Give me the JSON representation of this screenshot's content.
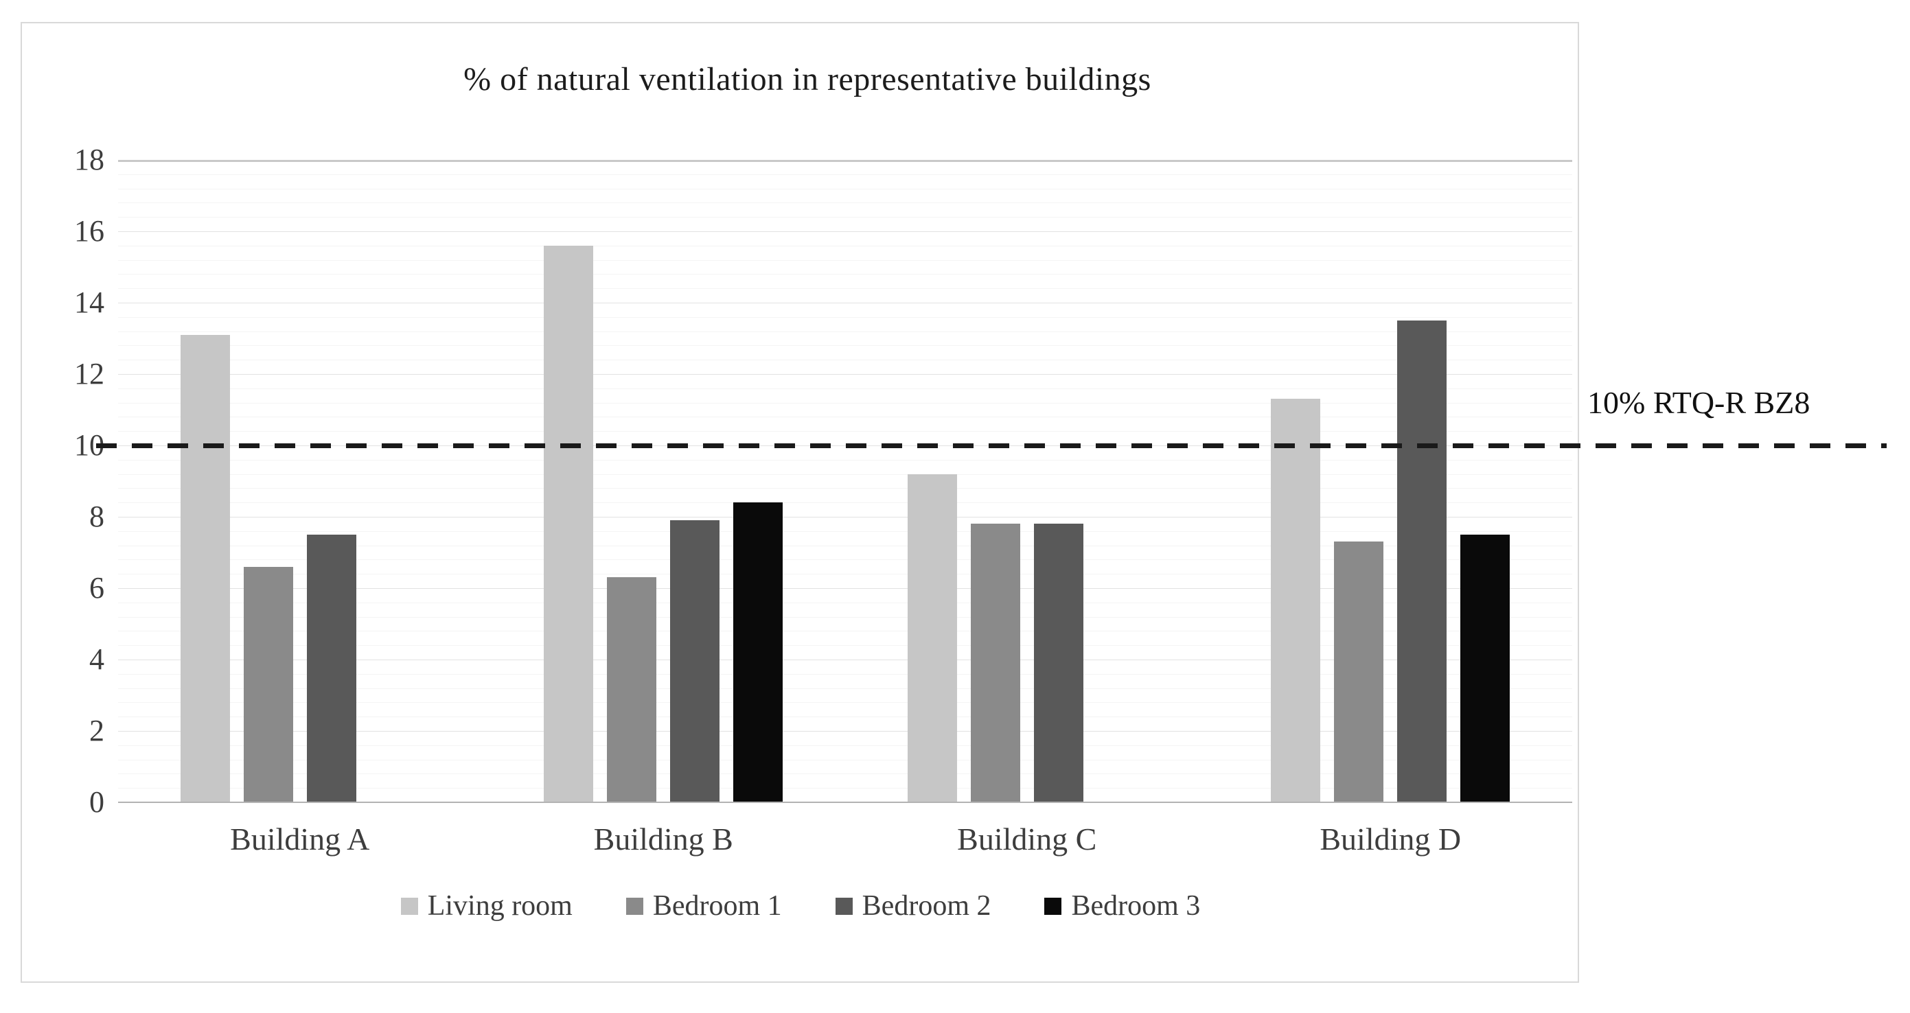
{
  "chart_data": {
    "type": "bar",
    "title": "% of natural ventilation in representative buildings",
    "categories": [
      "Building A",
      "Building B",
      "Building C",
      "Building D"
    ],
    "series": [
      {
        "name": "Living room",
        "color": "#c6c6c6",
        "values": [
          13.1,
          15.6,
          9.2,
          11.3
        ]
      },
      {
        "name": "Bedroom 1",
        "color": "#8a8a8a",
        "values": [
          6.6,
          6.3,
          7.8,
          7.3
        ]
      },
      {
        "name": "Bedroom 2",
        "color": "#595959",
        "values": [
          7.5,
          7.9,
          7.8,
          13.5
        ]
      },
      {
        "name": "Bedroom 3",
        "color": "#0a0a0a",
        "values": [
          null,
          8.4,
          null,
          7.5
        ]
      }
    ],
    "ylabel": "",
    "xlabel": "",
    "ylim": [
      0,
      18
    ],
    "y_tick_labels": [
      "0",
      "2",
      "4",
      "6",
      "8",
      "10",
      "12",
      "14",
      "16",
      "18"
    ],
    "y_tick_step": 2,
    "minor_grid_step": 0.4,
    "grid": true,
    "legend_position": "bottom",
    "reference_line": {
      "value": 10,
      "label": "10% RTQ-R BZ8",
      "style": "dashed",
      "color": "#1a1a1a"
    }
  }
}
